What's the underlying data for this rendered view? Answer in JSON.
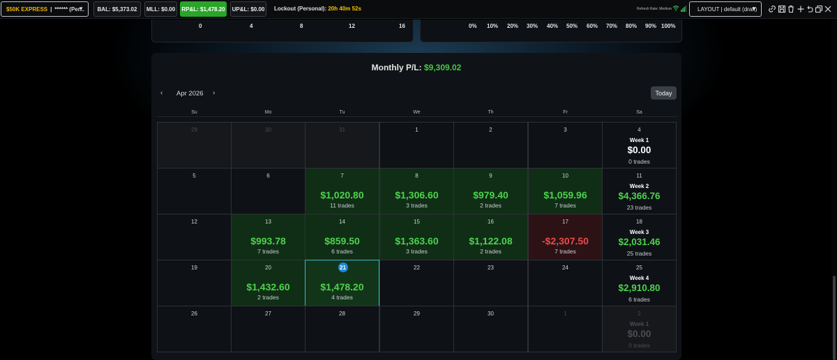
{
  "topbar": {
    "account_name": "$50K EXPRESS",
    "account_sep": "|",
    "account_masked": "****** (Per...",
    "bal": "BAL: $5,373.02",
    "mll": "MLL: $0.00",
    "rpl": "RP&L: $1,478.20",
    "upl": "UP&L: $0.00",
    "lockout_label": "Lockout (Personal):",
    "lockout_timer": "20h 40m 52s",
    "refresh_rate": "Refresh Rate: Medium",
    "layout_label": "LAYOUT | default (draft)"
  },
  "prev_panels": {
    "left_ticks": [
      "0",
      "4",
      "8",
      "12",
      "16"
    ],
    "right_ticks": [
      "0%",
      "10%",
      "20%",
      "30%",
      "40%",
      "50%",
      "60%",
      "70%",
      "80%",
      "90%",
      "100%"
    ]
  },
  "calendar": {
    "monthly_label": "Monthly P/L:",
    "monthly_value": "$9,309.02",
    "month": "Apr 2026",
    "today_button": "Today",
    "weekdays": [
      "Su",
      "Mo",
      "Tu",
      "We",
      "Th",
      "Fr",
      "Sa"
    ],
    "weeks": [
      {
        "days": [
          {
            "day": "29",
            "state": "dim"
          },
          {
            "day": "30",
            "state": "dim"
          },
          {
            "day": "31",
            "state": "dim"
          },
          {
            "day": "1"
          },
          {
            "day": "2"
          },
          {
            "day": "3"
          }
        ],
        "summary": {
          "day": "4",
          "title": "Week 1",
          "pnl": "$0.00",
          "trades": "0 trades",
          "tone": "white"
        }
      },
      {
        "days": [
          {
            "day": "5"
          },
          {
            "day": "6"
          },
          {
            "day": "7",
            "pnl": "$1,020.80",
            "trades": "11 trades",
            "state": "pos"
          },
          {
            "day": "8",
            "pnl": "$1,306.60",
            "trades": "3 trades",
            "state": "pos"
          },
          {
            "day": "9",
            "pnl": "$979.40",
            "trades": "2 trades",
            "state": "pos"
          },
          {
            "day": "10",
            "pnl": "$1,059.96",
            "trades": "7 trades",
            "state": "pos"
          }
        ],
        "summary": {
          "day": "11",
          "title": "Week 2",
          "pnl": "$4,366.76",
          "trades": "23 trades",
          "tone": "green"
        }
      },
      {
        "days": [
          {
            "day": "12"
          },
          {
            "day": "13",
            "pnl": "$993.78",
            "trades": "7 trades",
            "state": "pos"
          },
          {
            "day": "14",
            "pnl": "$859.50",
            "trades": "6 trades",
            "state": "pos"
          },
          {
            "day": "15",
            "pnl": "$1,363.60",
            "trades": "3 trades",
            "state": "pos"
          },
          {
            "day": "16",
            "pnl": "$1,122.08",
            "trades": "2 trades",
            "state": "pos"
          },
          {
            "day": "17",
            "pnl": "-$2,307.50",
            "trades": "7 trades",
            "state": "neg"
          }
        ],
        "summary": {
          "day": "18",
          "title": "Week 3",
          "pnl": "$2,031.46",
          "trades": "25 trades",
          "tone": "green"
        }
      },
      {
        "days": [
          {
            "day": "19"
          },
          {
            "day": "20",
            "pnl": "$1,432.60",
            "trades": "2 trades",
            "state": "pos"
          },
          {
            "day": "21",
            "pnl": "$1,478.20",
            "trades": "4 trades",
            "state": "today"
          },
          {
            "day": "22"
          },
          {
            "day": "23"
          },
          {
            "day": "24"
          }
        ],
        "summary": {
          "day": "25",
          "title": "Week 4",
          "pnl": "$2,910.80",
          "trades": "6 trades",
          "tone": "green"
        }
      },
      {
        "days": [
          {
            "day": "26"
          },
          {
            "day": "27"
          },
          {
            "day": "28"
          },
          {
            "day": "29"
          },
          {
            "day": "30"
          },
          {
            "day": "1",
            "state": "dimfuture"
          }
        ],
        "summary": {
          "day": "2",
          "title": "Week 1",
          "pnl": "$0.00",
          "trades": "0 trades",
          "tone": "fade"
        }
      }
    ]
  }
}
